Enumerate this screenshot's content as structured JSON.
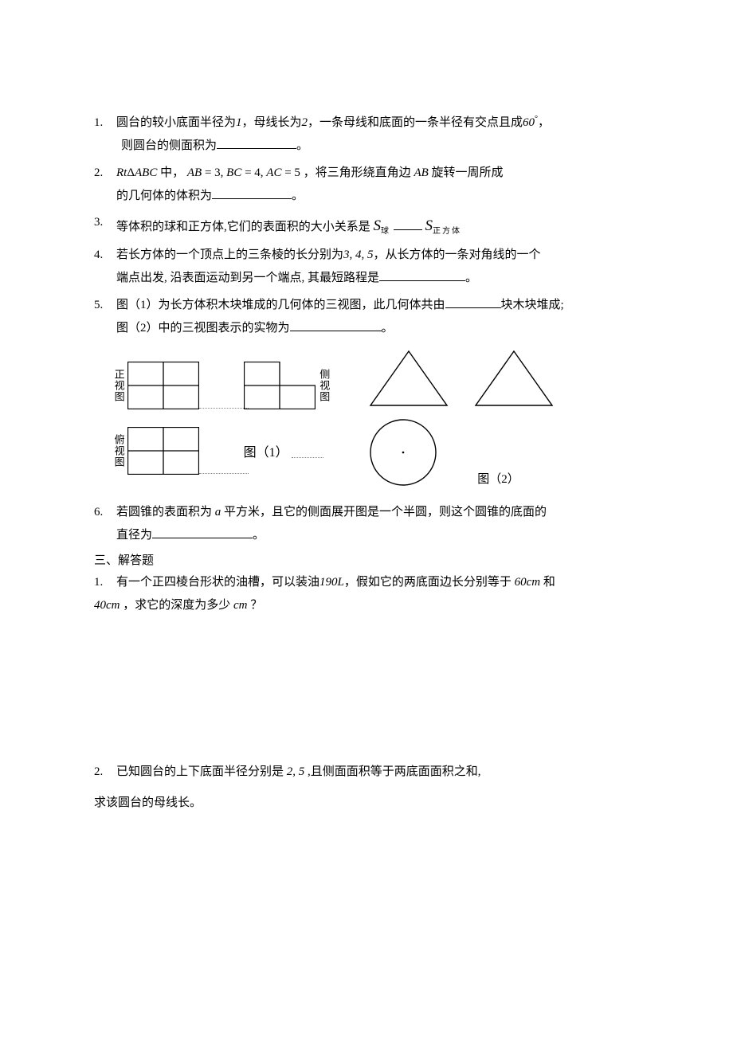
{
  "questions": [
    {
      "num": "1.",
      "line1_a": "圆台的较小底面半径为",
      "line1_b": "1",
      "line1_c": "，母线长为",
      "line1_d": "2",
      "line1_e": "，一条母线和底面的一条半径有交点且成",
      "line1_f": "60",
      "line1_g": "°",
      "line1_h": "，",
      "line2_a": "则圆台的侧面积为",
      "line2_end": "。",
      "blank_w": 100
    },
    {
      "num": "2.",
      "line1_a": "Rt",
      "line1_b": "Δ",
      "line1_c": "ABC",
      "line1_d": " 中， ",
      "line1_e": "AB",
      "line1_f": " = 3, ",
      "line1_g": "BC",
      "line1_h": " = 4, ",
      "line1_i": "AC",
      "line1_j": " = 5 ，将三角形绕直角边 ",
      "line1_k": "AB",
      "line1_l": " 旋转一周所成",
      "line2_a": "的几何体的体积为",
      "line2_end": "。",
      "blank_w": 100
    },
    {
      "num": "3.",
      "text_a": "等体积的球和正方体,它们的表面积的大小关系是 ",
      "s_letter": "S",
      "sub1": "球",
      "blank_w": 36,
      "sub2": "正方体"
    },
    {
      "num": "4.",
      "line1_a": "若长方体的一个顶点上的三条棱的长分别为",
      "line1_b": "3, 4, 5",
      "line1_c": "，从长方体的一条对角线的一个",
      "line2_a": "端点出发, 沿表面运动到另一个端点, 其最短路程是",
      "line2_end": "。",
      "blank_w": 108
    },
    {
      "num": "5.",
      "line1_a": " 图（1）为长方体积木块堆成的几何体的三视图，此几何体共由",
      "line1_end": "块木块堆成;",
      "blank1_w": 70,
      "line2_a": "图（2）中的三视图表示的实物为",
      "line2_end": "。",
      "blank2_w": 115
    },
    {
      "num": "6.",
      "line1_a": "若圆锥的表面积为 ",
      "line1_b": "a",
      "line1_c": " 平方米，且它的侧面展开图是一个半圆，则这个圆锥的底面的",
      "line2_a": " 直径为",
      "line2_end": "。",
      "blank_w": 126
    }
  ],
  "figure1": {
    "label_front": "正视图",
    "label_side": "侧视图",
    "label_top": "俯视图",
    "caption": "图（1）",
    "stroke": "#000000"
  },
  "figure2": {
    "caption": "图（2）",
    "stroke": "#000000"
  },
  "section3": "三、解答题",
  "answer_q1": {
    "num": "1.",
    "line1_a": "有一个正四棱台形状的油槽，可以装油",
    "line1_b": "190",
    "line1_c": "L",
    "line1_d": "，假如它的两底面边长分别等于",
    "line1_e": " 60",
    "line1_f": "cm",
    "line1_g": " 和",
    "line2_a": "40",
    "line2_b": "cm",
    "line2_c": " ，求它的深度为多少 ",
    "line2_d": "cm",
    "line2_e": " ？"
  },
  "answer_q2": {
    "num": "2.",
    "text_a": "已知圆台的上下底面半径分别是",
    "text_b": " 2, 5 ",
    "text_c": ",且侧面面积等于两底面面积之和,",
    "followup": "求该圆台的母线长。"
  }
}
